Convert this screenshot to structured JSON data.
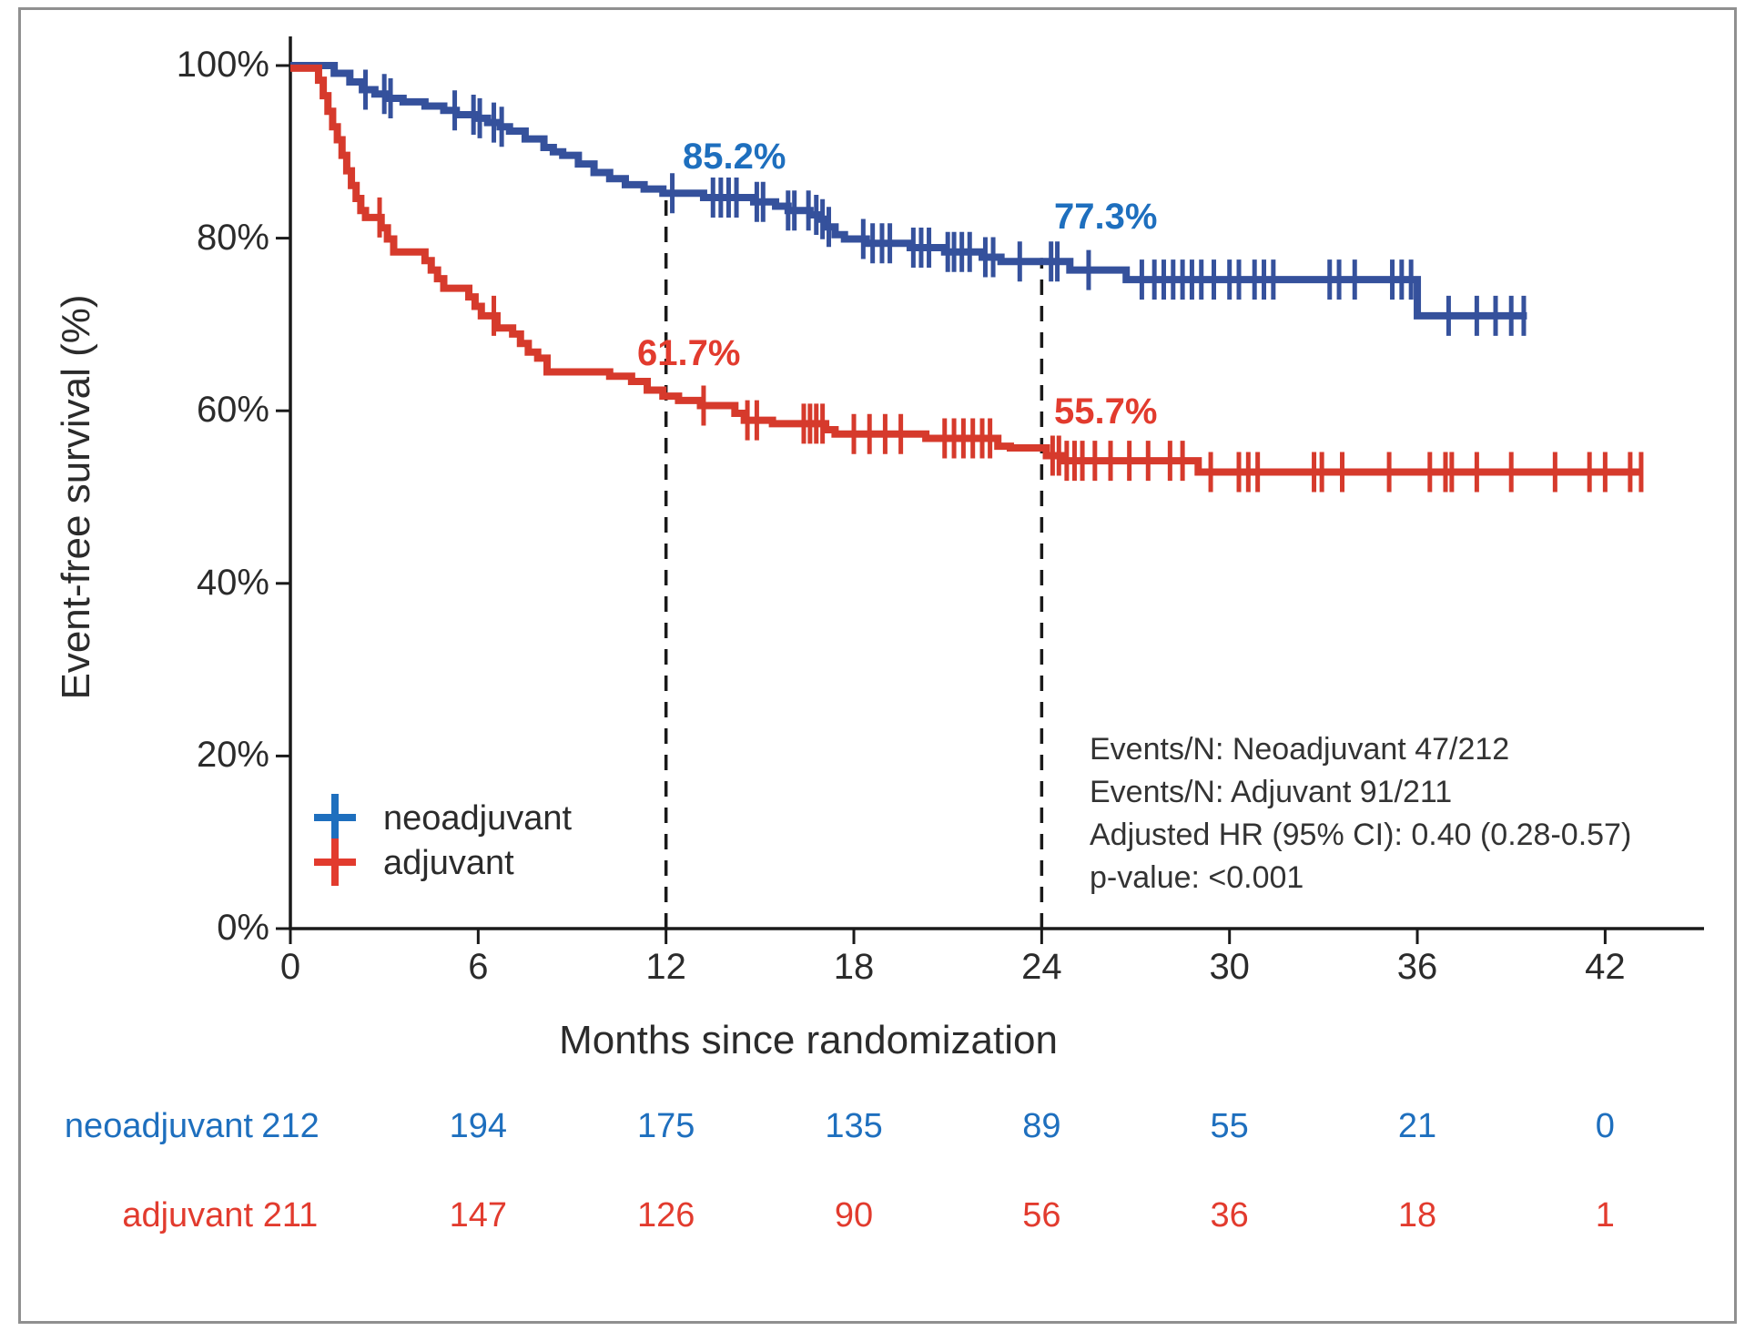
{
  "figure": {
    "background": "#ffffff",
    "border_color": "#909090"
  },
  "colors": {
    "neoadjuvant_curve": "#35519c",
    "neoadjuvant_accent": "#1e6fbe",
    "adjuvant_curve": "#d63a2c",
    "adjuvant_accent": "#e23b2e",
    "axis": "#1a1a1a",
    "tick_text": "#2b2b2b",
    "stats_text": "#333333"
  },
  "chart_data": {
    "type": "line",
    "subtype": "kaplan-meier-step",
    "title": "",
    "xlabel": "Months since randomization",
    "ylabel": "Event-free survival (%)",
    "xlim": [
      0,
      45
    ],
    "ylim": [
      0,
      100
    ],
    "grid": false,
    "xticks": [
      0,
      6,
      12,
      18,
      24,
      30,
      36,
      42
    ],
    "yticks": [
      {
        "value": 100,
        "label": "100%"
      },
      {
        "value": 80,
        "label": "80%"
      },
      {
        "value": 60,
        "label": "60%"
      },
      {
        "value": 40,
        "label": "40%"
      },
      {
        "value": 20,
        "label": "20%"
      },
      {
        "value": 0,
        "label": "0%"
      }
    ],
    "reference_lines": [
      {
        "x": 12,
        "top_pct": 85.2,
        "style": "dashed"
      },
      {
        "x": 24,
        "top_pct": 77.3,
        "style": "dashed"
      }
    ],
    "series": [
      {
        "name": "neoadjuvant",
        "color_key": "neoadjuvant_curve",
        "end_month": 39.5,
        "steps": [
          [
            0,
            100
          ],
          [
            1.4,
            99.1
          ],
          [
            1.9,
            98.1
          ],
          [
            2.3,
            97.2
          ],
          [
            2.7,
            96.7
          ],
          [
            3.1,
            96.2
          ],
          [
            3.6,
            95.8
          ],
          [
            4.3,
            95.3
          ],
          [
            4.9,
            94.8
          ],
          [
            5.3,
            94.3
          ],
          [
            5.9,
            93.9
          ],
          [
            6.3,
            93.4
          ],
          [
            6.7,
            92.9
          ],
          [
            7.0,
            92.4
          ],
          [
            7.5,
            91.5
          ],
          [
            8.1,
            90.5
          ],
          [
            8.4,
            90.0
          ],
          [
            8.7,
            89.6
          ],
          [
            9.2,
            88.6
          ],
          [
            9.7,
            87.6
          ],
          [
            10.2,
            86.9
          ],
          [
            10.7,
            86.2
          ],
          [
            11.3,
            85.7
          ],
          [
            11.9,
            85.2
          ],
          [
            13.2,
            84.7
          ],
          [
            14.8,
            84.2
          ],
          [
            15.5,
            83.7
          ],
          [
            15.9,
            83.2
          ],
          [
            16.6,
            82.7
          ],
          [
            16.9,
            82.2
          ],
          [
            17.1,
            81.3
          ],
          [
            17.4,
            80.4
          ],
          [
            17.7,
            79.9
          ],
          [
            18.4,
            79.4
          ],
          [
            19.8,
            78.9
          ],
          [
            20.9,
            78.4
          ],
          [
            22.1,
            77.8
          ],
          [
            22.7,
            77.3
          ],
          [
            24.9,
            76.3
          ],
          [
            26.7,
            75.2
          ],
          [
            36.0,
            71.0
          ]
        ],
        "censor_months": [
          2.4,
          3.0,
          3.2,
          5.25,
          5.85,
          6.05,
          6.5,
          6.75,
          12.2,
          13.5,
          13.75,
          14.0,
          14.25,
          14.9,
          15.1,
          15.9,
          16.1,
          16.55,
          16.8,
          17.0,
          17.2,
          18.3,
          18.6,
          18.9,
          19.15,
          19.9,
          20.15,
          20.4,
          21.0,
          21.2,
          21.45,
          21.7,
          22.2,
          22.45,
          23.3,
          24.3,
          24.5,
          25.5,
          27.2,
          27.6,
          27.9,
          28.2,
          28.5,
          28.8,
          29.1,
          29.5,
          30.0,
          30.3,
          30.8,
          31.1,
          31.4,
          33.2,
          33.5,
          34.0,
          35.2,
          35.5,
          35.8,
          37.0,
          37.9,
          38.5,
          39.0,
          39.4
        ]
      },
      {
        "name": "adjuvant",
        "color_key": "adjuvant_curve",
        "end_month": 43.2,
        "steps": [
          [
            0,
            99.7
          ],
          [
            0.9,
            98.3
          ],
          [
            1.05,
            96.5
          ],
          [
            1.2,
            94.7
          ],
          [
            1.35,
            92.9
          ],
          [
            1.5,
            91.4
          ],
          [
            1.65,
            89.6
          ],
          [
            1.8,
            87.8
          ],
          [
            1.95,
            86.1
          ],
          [
            2.1,
            84.6
          ],
          [
            2.25,
            83.2
          ],
          [
            2.4,
            82.4
          ],
          [
            2.9,
            81.2
          ],
          [
            3.1,
            79.9
          ],
          [
            3.3,
            78.4
          ],
          [
            4.3,
            77.4
          ],
          [
            4.5,
            76.3
          ],
          [
            4.7,
            75.3
          ],
          [
            4.9,
            74.2
          ],
          [
            5.7,
            73.2
          ],
          [
            5.9,
            72.1
          ],
          [
            6.1,
            71.0
          ],
          [
            6.6,
            69.6
          ],
          [
            7.1,
            68.9
          ],
          [
            7.35,
            67.8
          ],
          [
            7.6,
            66.8
          ],
          [
            7.9,
            66.1
          ],
          [
            8.2,
            64.5
          ],
          [
            10.2,
            64.0
          ],
          [
            10.9,
            63.4
          ],
          [
            11.4,
            62.4
          ],
          [
            11.9,
            61.7
          ],
          [
            12.4,
            61.2
          ],
          [
            13.1,
            60.6
          ],
          [
            14.2,
            59.7
          ],
          [
            14.5,
            58.9
          ],
          [
            15.4,
            58.5
          ],
          [
            17.1,
            57.8
          ],
          [
            17.4,
            57.3
          ],
          [
            20.3,
            56.8
          ],
          [
            22.6,
            55.9
          ],
          [
            23.0,
            55.7
          ],
          [
            24.15,
            54.8
          ],
          [
            24.7,
            54.2
          ],
          [
            29.0,
            52.9
          ]
        ],
        "censor_months": [
          2.85,
          6.5,
          13.2,
          14.6,
          14.9,
          16.4,
          16.6,
          16.8,
          17.0,
          18.0,
          18.5,
          19.0,
          19.5,
          20.9,
          21.2,
          21.5,
          21.8,
          22.1,
          22.35,
          24.35,
          24.55,
          24.8,
          25.05,
          25.3,
          25.7,
          26.2,
          26.8,
          27.4,
          28.1,
          28.5,
          29.4,
          30.3,
          30.6,
          30.9,
          32.7,
          32.95,
          33.6,
          35.1,
          36.4,
          36.9,
          37.1,
          37.9,
          39.0,
          40.4,
          41.5,
          42.0,
          42.8,
          43.15
        ]
      }
    ],
    "annotations": [
      {
        "label": "85.2%",
        "series": "neoadjuvant",
        "at_month": 12
      },
      {
        "label": "77.3%",
        "series": "neoadjuvant",
        "at_month": 24
      },
      {
        "label": "61.7%",
        "series": "adjuvant",
        "at_month": 12
      },
      {
        "label": "55.7%",
        "series": "adjuvant",
        "at_month": 24
      }
    ],
    "legend": {
      "position": "inside-bottom-left",
      "marker": "plus",
      "items": [
        {
          "label": "neoadjuvant",
          "color_key": "neoadjuvant_accent"
        },
        {
          "label": "adjuvant",
          "color_key": "adjuvant_accent"
        }
      ]
    },
    "stats_box": {
      "lines": [
        "Events/N: Neoadjuvant 47/212",
        "Events/N: Adjuvant 91/211",
        "Adjusted HR (95% CI): 0.40 (0.28-0.57)",
        "p-value: <0.001"
      ]
    },
    "risk_table": {
      "time_points": [
        0,
        6,
        12,
        18,
        24,
        30,
        36,
        42
      ],
      "rows": [
        {
          "label": "neoadjuvant",
          "values": [
            212,
            194,
            175,
            135,
            89,
            55,
            21,
            0
          ]
        },
        {
          "label": "adjuvant",
          "values": [
            211,
            147,
            126,
            90,
            56,
            36,
            18,
            1
          ]
        }
      ]
    }
  }
}
